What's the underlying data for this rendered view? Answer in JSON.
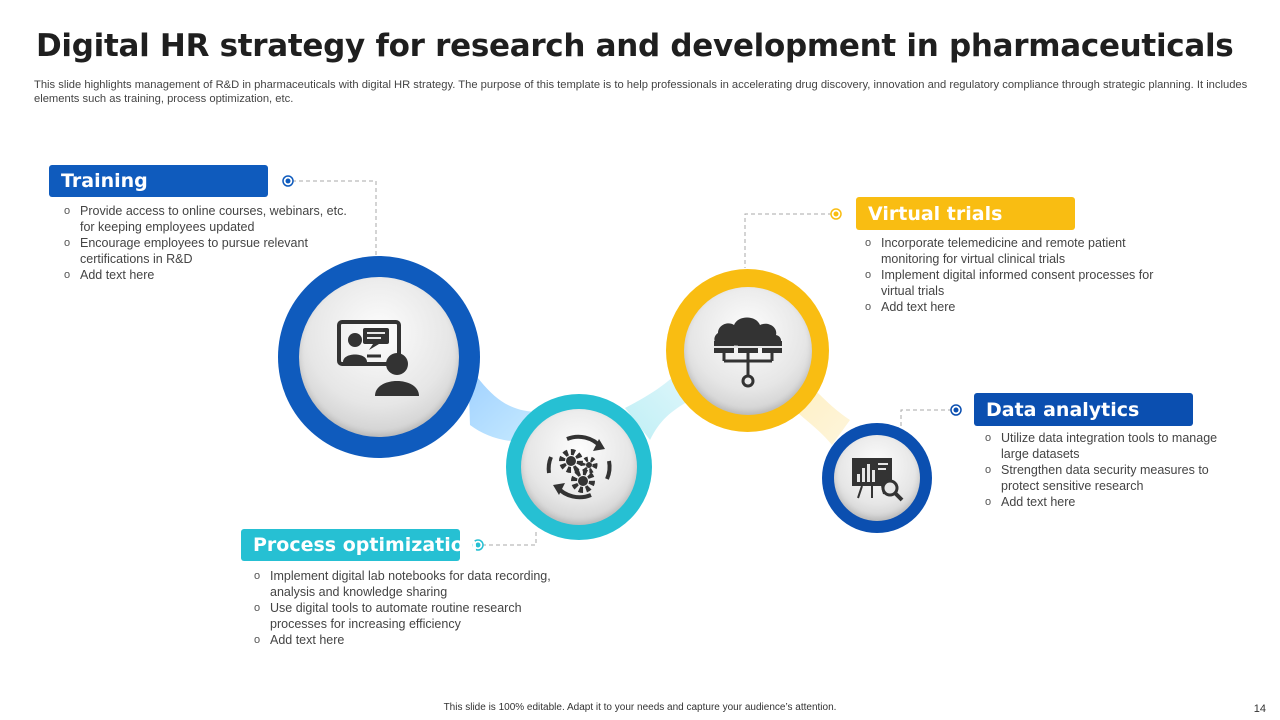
{
  "title": "Digital HR strategy for research and development in pharmaceuticals",
  "subtitle": "This slide highlights management of R&D in pharmaceuticals with digital HR strategy. The purpose of this template is to help professionals in accelerating drug discovery, innovation and regulatory compliance through strategic planning. It includes elements such as training, process optimization, etc.",
  "colors": {
    "blue": "#0f5bbd",
    "teal": "#26c0d3",
    "yellow": "#f9bd12",
    "dark_blue": "#0b4fb0"
  },
  "sections": {
    "training": {
      "title": "Training",
      "icon": "online-training-icon",
      "items": [
        "Provide access to online courses, webinars, etc. for keeping employees updated",
        "Encourage employees to pursue relevant certifications in R&D",
        "Add text here"
      ]
    },
    "process": {
      "title": "Process optimization",
      "icon": "gears-cycle-icon",
      "items": [
        "Implement digital lab notebooks for data recording, analysis and knowledge sharing",
        "Use digital tools to automate routine research processes for increasing efficiency",
        "Add text here"
      ]
    },
    "virtual": {
      "title": "Virtual trials",
      "icon": "cloud-network-icon",
      "items": [
        "Incorporate telemedicine and remote patient monitoring for virtual clinical trials",
        "Implement digital informed consent processes for virtual trials",
        "Add text here"
      ]
    },
    "analytics": {
      "title": "Data analytics",
      "icon": "analytics-board-icon",
      "items": [
        "Utilize data integration tools to manage large datasets",
        "Strengthen data security measures to protect sensitive research",
        "Add text here"
      ]
    }
  },
  "footer": "This slide is 100% editable. Adapt it to your needs and capture your audience’s attention.",
  "page_number": "14"
}
